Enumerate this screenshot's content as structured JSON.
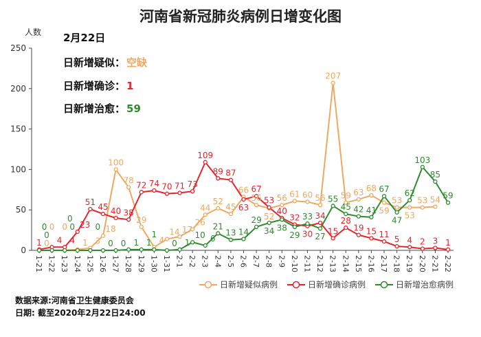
{
  "chart_data": {
    "type": "line",
    "title": "河南省新冠肺炎病例日增变化图",
    "ylabel": "人数",
    "ylim": [
      0,
      250
    ],
    "yticks": [
      0,
      50,
      100,
      150,
      200,
      250
    ],
    "grid": false,
    "legend": "bottom-right",
    "categories": [
      "1-21",
      "1-22",
      "1-23",
      "1-24",
      "1-25",
      "1-26",
      "1-27",
      "1-28",
      "1-29",
      "1-30",
      "1-31",
      "2-1",
      "2-2",
      "2-3",
      "2-4",
      "2-5",
      "2-6",
      "2-7",
      "2-8",
      "2-9",
      "2-10",
      "2-11",
      "2-12",
      "2-13",
      "2-14",
      "2-15",
      "2-16",
      "2-17",
      "2-18",
      "2-19",
      "2-20",
      "2-21",
      "2-22"
    ],
    "series": [
      {
        "name": "日新增疑似病例",
        "color": "#f0a860",
        "values": [
          0,
          0,
          0,
          1,
          3,
          18,
          100,
          78,
          29,
          4,
          14,
          17,
          26,
          44,
          52,
          45,
          66,
          56,
          52,
          56,
          61,
          60,
          56,
          207,
          59,
          63,
          68,
          59,
          53,
          53,
          53,
          54,
          null
        ]
      },
      {
        "name": "日新增确诊病例",
        "color": "#e8232a",
        "values": [
          1,
          4,
          4,
          23,
          51,
          45,
          40,
          38,
          72,
          74,
          70,
          71,
          73,
          109,
          89,
          87,
          63,
          67,
          53,
          40,
          32,
          30,
          34,
          15,
          28,
          19,
          15,
          11,
          5,
          4,
          2,
          3,
          1
        ]
      },
      {
        "name": "日新增治愈病例",
        "color": "#2e8b2e",
        "values": [
          0,
          0,
          0,
          0,
          0,
          0,
          0,
          1,
          1,
          1,
          0,
          1,
          10,
          6,
          21,
          13,
          14,
          29,
          34,
          38,
          29,
          33,
          27,
          55,
          45,
          42,
          41,
          67,
          47,
          62,
          103,
          85,
          59
        ]
      }
    ]
  },
  "info": {
    "date": "2月22日",
    "suspected_label": "日新增疑似：",
    "suspected_value": "空缺",
    "confirmed_label": "日新增确诊：",
    "confirmed_value": "1",
    "cured_label": "日新增治愈：",
    "cured_value": "59"
  },
  "footer": {
    "source": "数据来源:河南省卫生健康委员会",
    "date": "日期:  截至2020年2月22日24:00"
  }
}
